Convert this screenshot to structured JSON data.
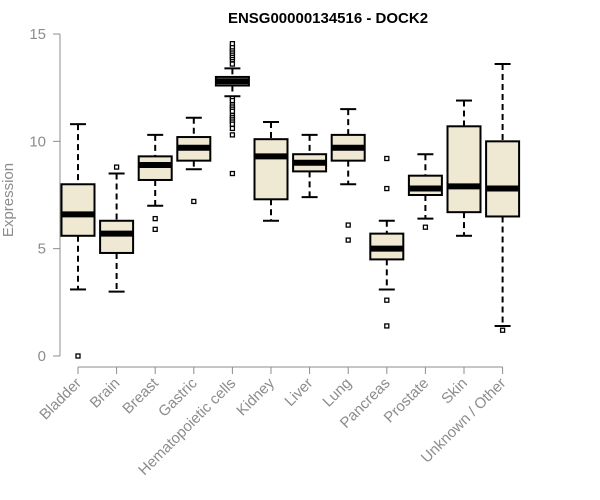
{
  "chart_data": {
    "type": "boxplot",
    "title": "ENSG00000134516 - DOCK2",
    "xlabel": "",
    "ylabel": "Expression",
    "ylim": [
      0,
      15
    ],
    "yticks": [
      0,
      5,
      10,
      15
    ],
    "colors": {
      "box_fill": "#efe8d2",
      "stroke": "#000000",
      "axis": "#8c8c8c"
    },
    "categories": [
      "Bladder",
      "Brain",
      "Breast",
      "Gastric",
      "Hematopoietic cells",
      "Kidney",
      "Liver",
      "Lung",
      "Pancreas",
      "Prostate",
      "Skin",
      "Unknown / Other"
    ],
    "boxes": [
      {
        "name": "Bladder",
        "lower_whisker": 3.1,
        "q1": 5.6,
        "median": 6.6,
        "q3": 8.0,
        "upper_whisker": 10.8,
        "outliers": [
          0.0
        ]
      },
      {
        "name": "Brain",
        "lower_whisker": 3.0,
        "q1": 4.8,
        "median": 5.7,
        "q3": 6.3,
        "upper_whisker": 8.5,
        "outliers": [
          8.8
        ]
      },
      {
        "name": "Breast",
        "lower_whisker": 7.0,
        "q1": 8.2,
        "median": 8.9,
        "q3": 9.3,
        "upper_whisker": 10.3,
        "outliers": [
          6.4,
          5.9
        ]
      },
      {
        "name": "Gastric",
        "lower_whisker": 8.7,
        "q1": 9.1,
        "median": 9.7,
        "q3": 10.2,
        "upper_whisker": 11.1,
        "outliers": [
          7.2
        ]
      },
      {
        "name": "Hematopoietic cells",
        "lower_whisker": 12.1,
        "q1": 12.6,
        "median": 12.8,
        "q3": 13.0,
        "upper_whisker": 13.4,
        "outliers": [
          13.6,
          13.8,
          13.9,
          14.0,
          14.1,
          14.2,
          14.3,
          14.4,
          14.55,
          12.0,
          11.9,
          11.7,
          11.6,
          11.5,
          11.4,
          11.2,
          11.1,
          11.0,
          10.9,
          10.8,
          10.6,
          10.3,
          8.5
        ]
      },
      {
        "name": "Kidney",
        "lower_whisker": 6.3,
        "q1": 7.3,
        "median": 9.3,
        "q3": 10.1,
        "upper_whisker": 10.9,
        "outliers": []
      },
      {
        "name": "Liver",
        "lower_whisker": 7.4,
        "q1": 8.6,
        "median": 9.0,
        "q3": 9.4,
        "upper_whisker": 10.3,
        "outliers": []
      },
      {
        "name": "Lung",
        "lower_whisker": 8.0,
        "q1": 9.1,
        "median": 9.7,
        "q3": 10.3,
        "upper_whisker": 11.5,
        "outliers": [
          6.1,
          5.4
        ]
      },
      {
        "name": "Pancreas",
        "lower_whisker": 3.1,
        "q1": 4.5,
        "median": 5.0,
        "q3": 5.7,
        "upper_whisker": 6.3,
        "outliers": [
          9.2,
          7.8,
          2.6,
          1.4
        ]
      },
      {
        "name": "Prostate",
        "lower_whisker": 6.4,
        "q1": 7.5,
        "median": 7.8,
        "q3": 8.4,
        "upper_whisker": 9.4,
        "outliers": [
          6.0
        ]
      },
      {
        "name": "Skin",
        "lower_whisker": 5.6,
        "q1": 6.7,
        "median": 7.9,
        "q3": 10.7,
        "upper_whisker": 11.9,
        "outliers": []
      },
      {
        "name": "Unknown / Other",
        "lower_whisker": 1.4,
        "q1": 6.5,
        "median": 7.8,
        "q3": 10.0,
        "upper_whisker": 13.6,
        "outliers": [
          1.2
        ]
      }
    ]
  }
}
